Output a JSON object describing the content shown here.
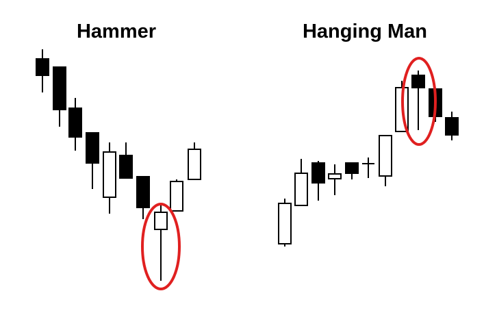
{
  "panels": [
    {
      "title": "Hammer"
    },
    {
      "title": "Hanging Man"
    }
  ]
}
